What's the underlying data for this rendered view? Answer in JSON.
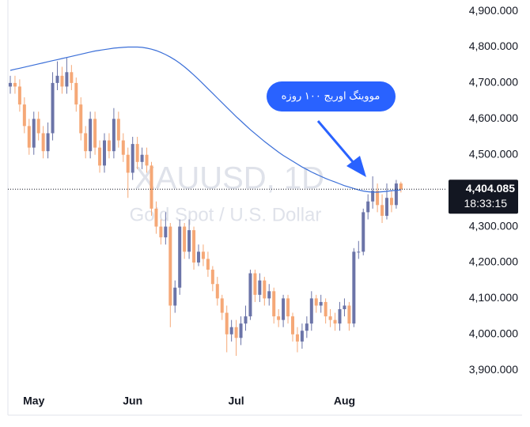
{
  "chart_data": {
    "type": "candlestick",
    "watermark_title": "XAUUSD, 1D",
    "watermark_subtitle": "Gold Spot / U.S. Dollar",
    "annotation": "مووینگ اوریج ۱۰۰ روزه",
    "categories": [
      null,
      null,
      null,
      null,
      null,
      "May",
      null,
      null,
      null,
      null,
      null,
      null,
      null,
      null,
      null,
      null,
      null,
      null,
      null,
      null,
      null,
      null,
      null,
      null,
      null,
      null,
      "Jun",
      null,
      null,
      null,
      null,
      null,
      null,
      null,
      null,
      null,
      null,
      null,
      null,
      null,
      null,
      null,
      null,
      null,
      null,
      null,
      null,
      null,
      "Jul",
      null,
      null,
      null,
      null,
      null,
      null,
      null,
      null,
      null,
      null,
      null,
      null,
      null,
      null,
      null,
      null,
      null,
      null,
      null,
      null,
      null,
      null,
      "Aug",
      null,
      null,
      null,
      null,
      null,
      null,
      null,
      null,
      null,
      null,
      null,
      null
    ],
    "ohlc": {
      "open": [
        4690,
        4700,
        4690,
        4640,
        4580,
        4520,
        4600,
        4560,
        4510,
        4560,
        4700,
        4720,
        4690,
        4730,
        4700,
        4640,
        4560,
        4510,
        4600,
        4520,
        4470,
        4540,
        4510,
        4600,
        4540,
        4500,
        4450,
        4530,
        4480,
        4500,
        4470,
        4350,
        4300,
        4270,
        4300,
        4080,
        4130,
        4300,
        4230,
        4290,
        4200,
        4230,
        4210,
        4180,
        4140,
        4100,
        4060,
        4000,
        4020,
        3990,
        4030,
        4050,
        4170,
        4110,
        4150,
        4100,
        4120,
        4050,
        4040,
        4100,
        4050,
        4000,
        3980,
        4010,
        4030,
        4100,
        4080,
        4090,
        4050,
        4040,
        4030,
        4070,
        4080,
        4030,
        4230,
        4230,
        4340,
        4370,
        4400,
        4360,
        4330,
        4380,
        4360,
        4420
      ],
      "high": [
        4720,
        4720,
        4710,
        4660,
        4600,
        4620,
        4620,
        4580,
        4590,
        4730,
        4760,
        4745,
        4770,
        4750,
        4715,
        4660,
        4580,
        4620,
        4620,
        4540,
        4560,
        4560,
        4630,
        4620,
        4560,
        4520,
        4550,
        4550,
        4520,
        4520,
        4480,
        4370,
        4320,
        4340,
        4310,
        4150,
        4320,
        4310,
        4320,
        4300,
        4250,
        4250,
        4230,
        4190,
        4160,
        4110,
        4080,
        4040,
        4040,
        4050,
        4080,
        4180,
        4180,
        4170,
        4160,
        4140,
        4130,
        4070,
        4110,
        4110,
        4060,
        4020,
        4030,
        4050,
        4120,
        4110,
        4110,
        4100,
        4070,
        4060,
        4090,
        4100,
        4090,
        4240,
        4260,
        4350,
        4390,
        4440,
        4420,
        4390,
        4420,
        4400,
        4430,
        4425
      ],
      "low": [
        4670,
        4670,
        4620,
        4560,
        4500,
        4500,
        4540,
        4490,
        4490,
        4540,
        4680,
        4670,
        4670,
        4680,
        4620,
        4540,
        4490,
        4490,
        4500,
        4450,
        4450,
        4490,
        4490,
        4520,
        4480,
        4380,
        4430,
        4460,
        4460,
        4450,
        4330,
        4280,
        4250,
        4250,
        4020,
        4060,
        4110,
        4210,
        4210,
        4180,
        4190,
        4190,
        4160,
        4120,
        4080,
        4040,
        3950,
        3980,
        3940,
        3970,
        4010,
        4040,
        4090,
        4090,
        4080,
        4080,
        4030,
        4020,
        4020,
        4030,
        3980,
        3950,
        3960,
        3990,
        4010,
        4060,
        4060,
        4030,
        4020,
        4010,
        4010,
        4050,
        4010,
        4020,
        4210,
        4220,
        4320,
        4350,
        4340,
        4310,
        4320,
        4340,
        4350,
        4395
      ],
      "close": [
        4700,
        4690,
        4640,
        4580,
        4520,
        4600,
        4560,
        4510,
        4560,
        4700,
        4720,
        4690,
        4730,
        4700,
        4640,
        4560,
        4510,
        4600,
        4520,
        4470,
        4540,
        4510,
        4600,
        4540,
        4500,
        4450,
        4530,
        4480,
        4500,
        4470,
        4350,
        4300,
        4270,
        4300,
        4080,
        4130,
        4300,
        4230,
        4290,
        4200,
        4230,
        4210,
        4180,
        4140,
        4100,
        4060,
        4000,
        4020,
        3990,
        4030,
        4050,
        4170,
        4110,
        4150,
        4100,
        4120,
        4050,
        4040,
        4100,
        4050,
        4000,
        3980,
        4010,
        4030,
        4100,
        4080,
        4090,
        4050,
        4040,
        4030,
        4070,
        4080,
        4030,
        4230,
        4230,
        4340,
        4370,
        4400,
        4360,
        4330,
        4380,
        4360,
        4420,
        4404.085
      ]
    },
    "up_color": "#6b74a8",
    "down_color": "#f5a877",
    "moving_average": {
      "color": "#3b6fd8",
      "values": [
        4735,
        4738,
        4741,
        4744,
        4747,
        4750,
        4753,
        4756,
        4759,
        4762,
        4765,
        4768,
        4771,
        4774,
        4777,
        4780,
        4783,
        4786,
        4789,
        4791,
        4793,
        4795,
        4797,
        4798,
        4799,
        4800,
        4800,
        4800,
        4799,
        4797,
        4794,
        4790,
        4785,
        4779,
        4772,
        4764,
        4755,
        4745,
        4734,
        4722,
        4710,
        4697,
        4684,
        4671,
        4658,
        4645,
        4632,
        4619,
        4606,
        4594,
        4582,
        4570,
        4559,
        4548,
        4537,
        4527,
        4517,
        4507,
        4498,
        4490,
        4482,
        4474,
        4466,
        4459,
        4452,
        4446,
        4440,
        4434,
        4429,
        4424,
        4419,
        4414,
        4410,
        4406,
        4402,
        4399,
        4397,
        4396,
        4396,
        4397,
        4398,
        4400,
        4401,
        4402
      ]
    },
    "last_price": {
      "value": 4404.085,
      "label": "4,404.085"
    },
    "countdown": "18:33:15",
    "ylim": [
      3852,
      4931
    ],
    "yticks": [
      {
        "value": 3900,
        "label": "3,900.000"
      },
      {
        "value": 4000,
        "label": "4,000.000"
      },
      {
        "value": 4100,
        "label": "4,100.000"
      },
      {
        "value": 4200,
        "label": "4,200.000"
      },
      {
        "value": 4300,
        "label": "4,300.000"
      },
      {
        "value": 4400,
        "label": "4,400.000"
      },
      {
        "value": 4500,
        "label": "4,500.000"
      },
      {
        "value": 4600,
        "label": "4,600.000"
      },
      {
        "value": 4700,
        "label": "4,700.000"
      },
      {
        "value": 4800,
        "label": "4,800.000"
      },
      {
        "value": 4900,
        "label": "4,900.000"
      }
    ]
  }
}
